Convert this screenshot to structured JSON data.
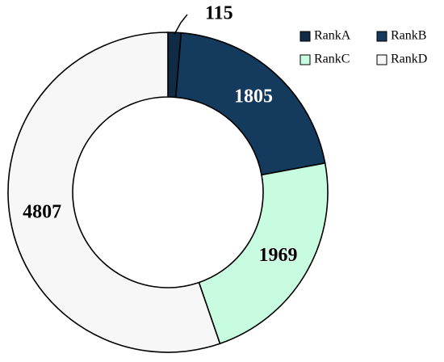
{
  "chart_data": {
    "type": "pie",
    "variant": "donut",
    "labels": [
      "RankA",
      "RankB",
      "RankC",
      "RankD"
    ],
    "values": [
      115,
      1805,
      1969,
      4807
    ],
    "data_labels": [
      "115",
      "1805",
      "1969",
      "4807"
    ],
    "colors": [
      "#0f2b46",
      "#143a5e",
      "#c8fce0",
      "#f7f7f7"
    ],
    "label_colors": [
      "#000000",
      "#ffffff",
      "#000000",
      "#000000"
    ],
    "legend": {
      "position": "top-right"
    }
  }
}
